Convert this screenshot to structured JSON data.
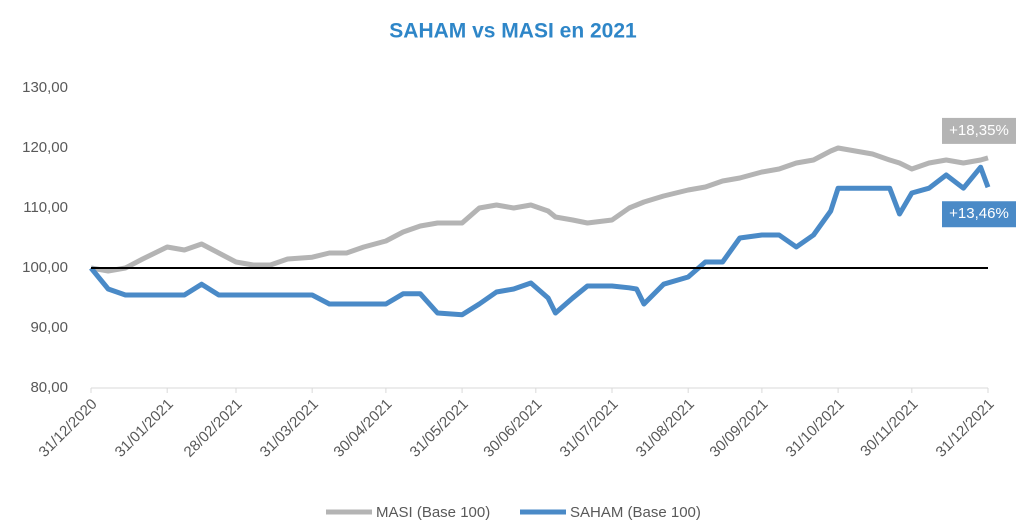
{
  "chart_data": {
    "type": "line",
    "title": "SAHAM vs MASI en 2021",
    "x": [
      "31/12/2020",
      "07/01/2021",
      "14/01/2021",
      "21/01/2021",
      "31/01/2021",
      "07/02/2021",
      "14/02/2021",
      "21/02/2021",
      "28/02/2021",
      "07/03/2021",
      "14/03/2021",
      "21/03/2021",
      "31/03/2021",
      "07/04/2021",
      "14/04/2021",
      "21/04/2021",
      "30/04/2021",
      "07/05/2021",
      "14/05/2021",
      "21/05/2021",
      "31/05/2021",
      "07/06/2021",
      "14/06/2021",
      "21/06/2021",
      "28/06/2021",
      "05/07/2021",
      "08/07/2021",
      "15/07/2021",
      "21/07/2021",
      "31/07/2021",
      "07/08/2021",
      "10/08/2021",
      "13/08/2021",
      "21/08/2021",
      "31/08/2021",
      "07/09/2021",
      "14/09/2021",
      "21/09/2021",
      "30/09/2021",
      "07/10/2021",
      "14/10/2021",
      "21/10/2021",
      "28/10/2021",
      "31/10/2021",
      "14/11/2021",
      "21/11/2021",
      "25/11/2021",
      "30/11/2021",
      "07/12/2021",
      "14/12/2021",
      "21/12/2021",
      "28/12/2021",
      "31/12/2021"
    ],
    "series": [
      {
        "name": "MASI (Base 100)",
        "color": "#b4b4b4",
        "values": [
          100,
          99.5,
          100,
          101.5,
          103.5,
          103,
          104,
          102.5,
          101,
          100.5,
          100.5,
          101.5,
          101.8,
          102.5,
          102.5,
          103.5,
          104.5,
          106,
          107,
          107.5,
          107.5,
          110,
          110.5,
          110,
          110.5,
          109.5,
          108.5,
          108,
          107.5,
          108,
          110,
          110.5,
          111,
          112,
          113,
          113.5,
          114.5,
          115,
          116,
          116.5,
          117.5,
          118,
          119.5,
          120,
          119,
          118,
          117.5,
          116.5,
          117.5,
          118,
          117.5,
          118,
          118.35
        ]
      },
      {
        "name": "SAHAM (Base 100)",
        "color": "#4a8ac7",
        "values": [
          100,
          96.5,
          95.5,
          95.5,
          95.5,
          95.5,
          97.3,
          95.5,
          95.5,
          95.5,
          95.5,
          95.5,
          95.5,
          94,
          94,
          94,
          94,
          95.7,
          95.7,
          92.5,
          92.2,
          94,
          96,
          96.5,
          97.5,
          95,
          92.5,
          95,
          97,
          97,
          96.7,
          96.5,
          94,
          97.3,
          98.5,
          101,
          101,
          105,
          105.5,
          105.5,
          103.5,
          105.5,
          109.5,
          113.3,
          113.3,
          113.3,
          109,
          112.5,
          113.3,
          115.5,
          113.3,
          116.8,
          113.46
        ]
      }
    ],
    "annotations": [
      {
        "text": "+18,35%",
        "series": 0,
        "color": "#b4b4b4"
      },
      {
        "text": "+13,46%",
        "series": 1,
        "color": "#4a8ac7"
      }
    ],
    "xlim": [
      "31/12/2020",
      "31/12/2021"
    ],
    "xticks": [
      "31/12/2020",
      "31/01/2021",
      "28/02/2021",
      "31/03/2021",
      "30/04/2021",
      "31/05/2021",
      "30/06/2021",
      "31/07/2021",
      "31/08/2021",
      "30/09/2021",
      "31/10/2021",
      "30/11/2021",
      "31/12/2021"
    ],
    "ylim": [
      80,
      130
    ],
    "yticks": [
      {
        "value": 80,
        "label": "80,00"
      },
      {
        "value": 90,
        "label": "90,00"
      },
      {
        "value": 100,
        "label": "100,00"
      },
      {
        "value": 110,
        "label": "110,00"
      },
      {
        "value": 120,
        "label": "120,00"
      },
      {
        "value": 130,
        "label": "130,00"
      }
    ],
    "reference_line": 100,
    "legend": "bottom"
  }
}
